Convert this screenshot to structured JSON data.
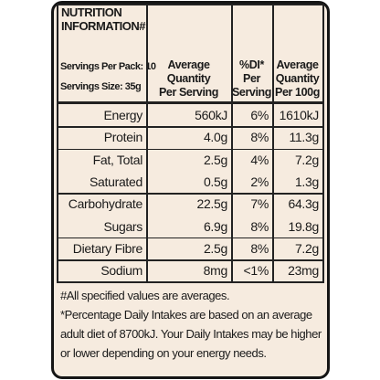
{
  "header": {
    "title": "NUTRITION INFORMATION#",
    "servings_per_pack": "Servings Per Pack: 10",
    "serving_size": "Servings Size: 35g"
  },
  "columns": [
    [
      "Average",
      "Quantity",
      "Per Serving"
    ],
    [
      "%DI*",
      "Per",
      "Serving"
    ],
    [
      "Average",
      "Quantity",
      "Per 100g"
    ]
  ],
  "table": {
    "groups": [
      [
        [
          "Energy",
          "560kJ",
          "6%",
          "1610kJ"
        ]
      ],
      [
        [
          "Protein",
          "4.0g",
          "8%",
          "11.3g"
        ]
      ],
      [
        [
          "Fat, Total",
          "2.5g",
          "4%",
          "7.2g"
        ],
        [
          "Saturated",
          "0.5g",
          "2%",
          "1.3g"
        ]
      ],
      [
        [
          "Carbohydrate",
          "22.5g",
          "7%",
          "64.3g"
        ],
        [
          "Sugars",
          "6.9g",
          "8%",
          "19.8g"
        ]
      ],
      [
        [
          "Dietary Fibre",
          "2.5g",
          "8%",
          "7.2g"
        ]
      ],
      [
        [
          "Sodium",
          "8mg",
          "<1%",
          "23mg"
        ]
      ]
    ]
  },
  "footnotes": [
    "#All specified values are averages.",
    "*Percentage Daily Intakes are based on an average adult diet of 8700kJ. Your Daily Intakes may be higher or lower depending on your energy needs."
  ]
}
